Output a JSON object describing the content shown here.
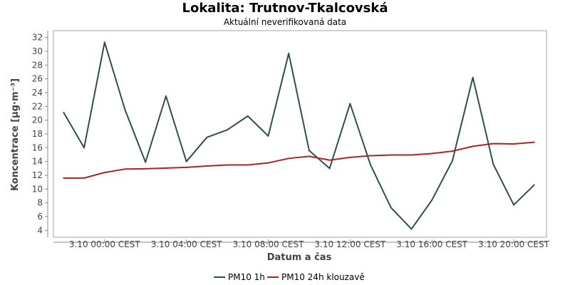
{
  "chart_data": {
    "type": "line",
    "title": "Lokalita: Trutnov-Tkalcovská",
    "subtitle": "Aktuální neverifikovaná data",
    "xlabel": "Datum a čas",
    "ylabel": "Koncentrace [µg·m⁻³]",
    "ylim": [
      3,
      33
    ],
    "y_ticks": [
      4,
      6,
      8,
      10,
      12,
      14,
      16,
      18,
      20,
      22,
      24,
      26,
      28,
      30,
      32
    ],
    "x_range_hours": [
      -2.5,
      21.6
    ],
    "x_ticks": [
      {
        "hour": 0,
        "label": "3.10 00:00 CEST"
      },
      {
        "hour": 4,
        "label": "3.10 04:00 CEST"
      },
      {
        "hour": 8,
        "label": "3.10 08:00 CEST"
      },
      {
        "hour": 12,
        "label": "3.10 12:00 CEST"
      },
      {
        "hour": 16,
        "label": "3.10 16:00 CEST"
      },
      {
        "hour": 20,
        "label": "3.10 20:00 CEST"
      }
    ],
    "x_hours": [
      -2,
      -1,
      0,
      1,
      2,
      3,
      4,
      5,
      6,
      7,
      8,
      9,
      10,
      11,
      12,
      13,
      14,
      15,
      16,
      17,
      18,
      19,
      20,
      21
    ],
    "grid": true,
    "legend_position": "bottom-center",
    "series": [
      {
        "name": "PM10 1h",
        "color": "#2f4f4f",
        "values": [
          21.1,
          16.0,
          31.3,
          21.5,
          13.9,
          23.5,
          14.0,
          17.5,
          18.6,
          20.6,
          17.7,
          29.7,
          15.6,
          13.0,
          22.4,
          13.5,
          7.3,
          4.2,
          8.4,
          14.1,
          26.2,
          13.6,
          7.7,
          10.6
        ]
      },
      {
        "name": "PM10 24h klouzavě",
        "color": "#b22222",
        "values": [
          11.6,
          11.6,
          12.4,
          12.9,
          12.95,
          13.05,
          13.15,
          13.35,
          13.5,
          13.5,
          13.8,
          14.45,
          14.75,
          14.2,
          14.6,
          14.85,
          14.95,
          14.95,
          15.15,
          15.5,
          16.2,
          16.6,
          16.55,
          16.8
        ]
      }
    ]
  }
}
